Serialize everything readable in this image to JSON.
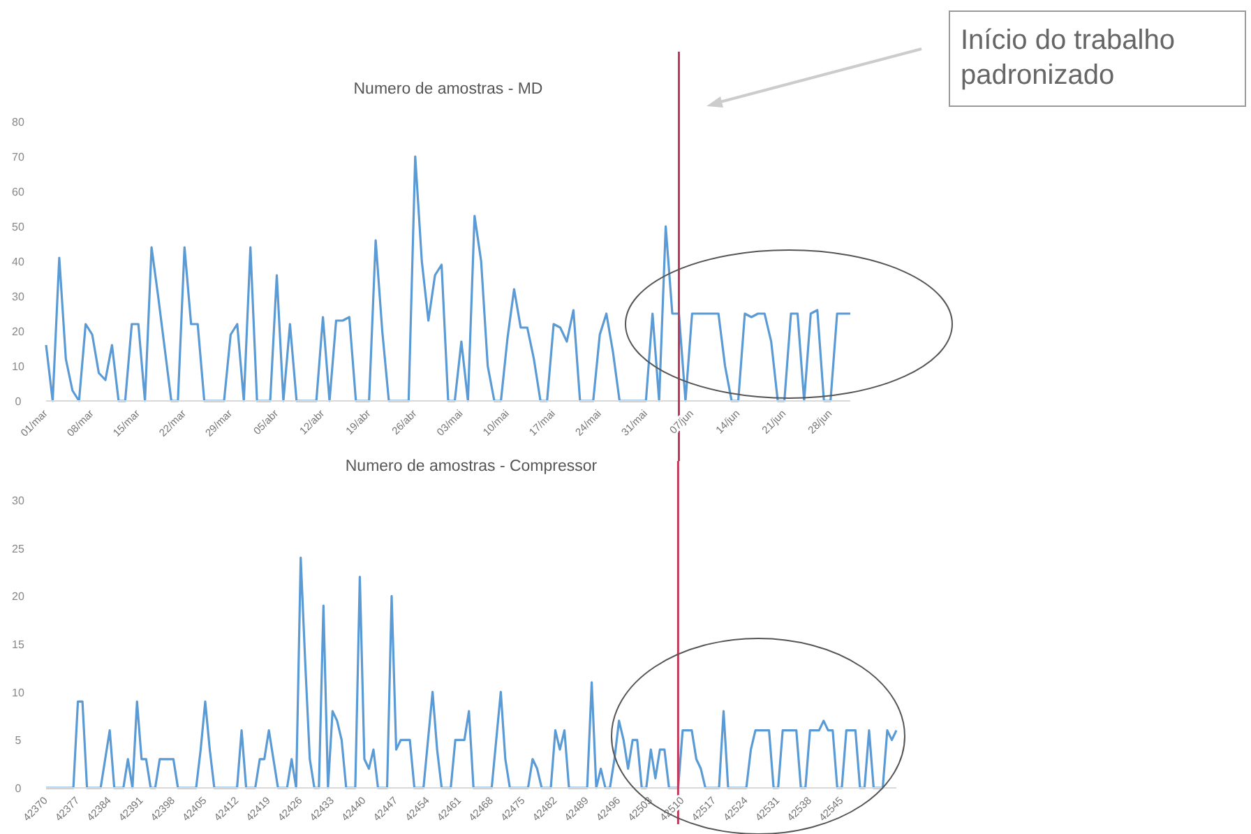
{
  "chart_data": [
    {
      "type": "line",
      "title": "Numero de amostras - MD",
      "x": [
        "--03-01",
        "--03-02",
        "--03-03",
        "--03-04",
        "--03-05",
        "--03-06",
        "--03-07",
        "--03-08",
        "--03-09",
        "--03-10",
        "--03-11",
        "--03-12",
        "--03-13",
        "--03-14",
        "--03-15",
        "--03-16",
        "--03-17",
        "--03-18",
        "--03-19",
        "--03-20",
        "--03-21",
        "--03-22",
        "--03-23",
        "--03-24",
        "--03-25",
        "--03-26",
        "--03-27",
        "--03-28",
        "--03-29",
        "--03-30",
        "--03-31",
        "--04-01",
        "--04-02",
        "--04-03",
        "--04-04",
        "--04-05",
        "--04-06",
        "--04-07",
        "--04-08",
        "--04-09",
        "--04-10",
        "--04-11",
        "--04-12",
        "--04-13",
        "--04-14",
        "--04-15",
        "--04-16",
        "--04-17",
        "--04-18",
        "--04-19",
        "--04-20",
        "--04-21",
        "--04-22",
        "--04-23",
        "--04-24",
        "--04-25",
        "--04-26",
        "--04-27",
        "--04-28",
        "--04-29",
        "--04-30",
        "--05-01",
        "--05-02",
        "--05-03",
        "--05-04",
        "--05-05",
        "--05-06",
        "--05-07",
        "--05-08",
        "--05-09",
        "--05-10",
        "--05-11",
        "--05-12",
        "--05-13",
        "--05-14",
        "--05-15",
        "--05-16",
        "--05-17",
        "--05-18",
        "--05-19",
        "--05-20",
        "--05-21",
        "--05-22",
        "--05-23",
        "--05-24",
        "--05-25",
        "--05-26",
        "--05-27",
        "--05-28",
        "--05-29",
        "--05-30",
        "--05-31",
        "--06-01",
        "--06-02",
        "--06-03",
        "--06-04",
        "--06-05",
        "--06-06",
        "--06-07",
        "--06-08",
        "--06-09",
        "--06-10",
        "--06-11",
        "--06-12",
        "--06-13",
        "--06-14",
        "--06-15",
        "--06-16",
        "--06-17",
        "--06-18",
        "--06-19",
        "--06-20",
        "--06-21",
        "--06-22",
        "--06-23",
        "--06-24",
        "--06-25",
        "--06-26",
        "--06-27",
        "--06-28",
        "--06-29",
        "--06-30",
        "--07-01"
      ],
      "series": [
        {
          "color": "#5b9bd5",
          "values": [
            16,
            0,
            41,
            12,
            3,
            0,
            22,
            19,
            8,
            6,
            16,
            0,
            0,
            22,
            22,
            0,
            44,
            30,
            15,
            0,
            0,
            44,
            22,
            22,
            0,
            0,
            0,
            0,
            19,
            22,
            0,
            44,
            0,
            0,
            0,
            36,
            0,
            22,
            0,
            0,
            0,
            0,
            24,
            0,
            23,
            23,
            24,
            0,
            0,
            0,
            46,
            20,
            0,
            0,
            0,
            0,
            70,
            40,
            23,
            36,
            39,
            0,
            0,
            17,
            0,
            53,
            40,
            10,
            0,
            0,
            18,
            32,
            21,
            21,
            12,
            0,
            0,
            22,
            21,
            17,
            26,
            0,
            0,
            0,
            19,
            25,
            14,
            0,
            0,
            0,
            0,
            0,
            25,
            0,
            50,
            25,
            25,
            0,
            25,
            25,
            25,
            25,
            25,
            10,
            0,
            0,
            25,
            24,
            25,
            25,
            17,
            0,
            0,
            25,
            25,
            0,
            25,
            26,
            0,
            0,
            25,
            25,
            25
          ]
        }
      ],
      "xlim": [
        "--03-01",
        "--07-01"
      ],
      "xticks": [
        {
          "value": "--03-01",
          "label": "01/mar"
        },
        {
          "value": "--03-08",
          "label": "08/mar"
        },
        {
          "value": "--03-15",
          "label": "15/mar"
        },
        {
          "value": "--03-22",
          "label": "22/mar"
        },
        {
          "value": "--03-29",
          "label": "29/mar"
        },
        {
          "value": "--04-05",
          "label": "05/abr"
        },
        {
          "value": "--04-12",
          "label": "12/abr"
        },
        {
          "value": "--04-19",
          "label": "19/abr"
        },
        {
          "value": "--04-26",
          "label": "26/abr"
        },
        {
          "value": "--05-03",
          "label": "03/mai"
        },
        {
          "value": "--05-10",
          "label": "10/mai"
        },
        {
          "value": "--05-17",
          "label": "17/mai"
        },
        {
          "value": "--05-24",
          "label": "24/mai"
        },
        {
          "value": "--05-31",
          "label": "31/mai"
        },
        {
          "value": "--06-07",
          "label": "07/jun"
        },
        {
          "value": "--06-14",
          "label": "14/jun"
        },
        {
          "value": "--06-21",
          "label": "21/jun"
        },
        {
          "value": "--06-28",
          "label": "28/jun"
        }
      ],
      "ylim": [
        0,
        80
      ],
      "yticks": [
        0,
        10,
        20,
        30,
        40,
        50,
        60,
        70,
        80
      ],
      "ref_lines": [
        {
          "axis": "x",
          "value": "--06-05",
          "color": "#c0395a"
        }
      ],
      "annotations": [
        "Início do trabalho padronizado"
      ]
    },
    {
      "type": "line",
      "title": "Numero de amostras - Compressor",
      "x": [
        42370,
        42371,
        42372,
        42373,
        42374,
        42375,
        42376,
        42377,
        42378,
        42379,
        42380,
        42381,
        42382,
        42383,
        42384,
        42385,
        42386,
        42387,
        42388,
        42389,
        42390,
        42391,
        42392,
        42393,
        42394,
        42395,
        42396,
        42397,
        42398,
        42399,
        42400,
        42401,
        42402,
        42403,
        42404,
        42405,
        42406,
        42407,
        42408,
        42409,
        42410,
        42411,
        42412,
        42413,
        42414,
        42415,
        42416,
        42417,
        42418,
        42419,
        42420,
        42421,
        42422,
        42423,
        42424,
        42425,
        42426,
        42427,
        42428,
        42429,
        42430,
        42431,
        42432,
        42433,
        42434,
        42435,
        42436,
        42437,
        42438,
        42439,
        42440,
        42441,
        42442,
        42443,
        42444,
        42445,
        42446,
        42447,
        42448,
        42449,
        42450,
        42451,
        42452,
        42453,
        42454,
        42455,
        42456,
        42457,
        42458,
        42459,
        42460,
        42461,
        42462,
        42463,
        42464,
        42465,
        42466,
        42467,
        42468,
        42469,
        42470,
        42471,
        42472,
        42473,
        42474,
        42475,
        42476,
        42477,
        42478,
        42479,
        42480,
        42481,
        42482,
        42483,
        42484,
        42485,
        42486,
        42487,
        42488,
        42489,
        42490,
        42491,
        42492,
        42493,
        42494,
        42495,
        42496,
        42497,
        42498,
        42499,
        42500,
        42501,
        42502,
        42503,
        42504,
        42505,
        42506,
        42507,
        42508,
        42509,
        42510,
        42511,
        42512,
        42513,
        42514,
        42515,
        42516,
        42517,
        42518,
        42519,
        42520,
        42521,
        42522,
        42523,
        42524,
        42525,
        42526,
        42527,
        42528,
        42529,
        42530,
        42531,
        42532,
        42533,
        42534,
        42535,
        42536,
        42537,
        42538,
        42539,
        42540,
        42541,
        42542,
        42543,
        42544,
        42545,
        42546,
        42547,
        42548,
        42549,
        42550,
        42551,
        42552,
        42553,
        42554,
        42555,
        42556,
        42557
      ],
      "series": [
        {
          "color": "#5b9bd5",
          "values": [
            0,
            0,
            0,
            0,
            0,
            0,
            0,
            9,
            9,
            0,
            0,
            0,
            0,
            3,
            6,
            0,
            0,
            0,
            3,
            0,
            9,
            3,
            3,
            0,
            0,
            3,
            3,
            3,
            3,
            0,
            0,
            0,
            0,
            0,
            4,
            9,
            4,
            0,
            0,
            0,
            0,
            0,
            0,
            6,
            0,
            0,
            0,
            3,
            3,
            6,
            3,
            0,
            0,
            0,
            3,
            0,
            24,
            13,
            3,
            0,
            0,
            19,
            0,
            8,
            7,
            5,
            0,
            0,
            0,
            22,
            3,
            2,
            4,
            0,
            0,
            0,
            20,
            4,
            5,
            5,
            5,
            0,
            0,
            0,
            5,
            10,
            4,
            0,
            0,
            0,
            5,
            5,
            5,
            8,
            0,
            0,
            0,
            0,
            0,
            5,
            10,
            3,
            0,
            0,
            0,
            0,
            0,
            3,
            2,
            0,
            0,
            0,
            6,
            4,
            6,
            0,
            0,
            0,
            0,
            0,
            11,
            0,
            2,
            0,
            0,
            3,
            7,
            5,
            2,
            5,
            5,
            0,
            0,
            4,
            1,
            4,
            4,
            0,
            0,
            0,
            6,
            6,
            6,
            3,
            2,
            0,
            0,
            0,
            0,
            8,
            0,
            0,
            0,
            0,
            0,
            4,
            6,
            6,
            6,
            6,
            0,
            0,
            6,
            6,
            6,
            6,
            0,
            0,
            6,
            6,
            6,
            7,
            6,
            6,
            0,
            0,
            6,
            6,
            6,
            0,
            0,
            6,
            0,
            0,
            0,
            6,
            5,
            6
          ]
        }
      ],
      "xlim": [
        42370,
        42557
      ],
      "xticks": [
        42370,
        42377,
        42384,
        42391,
        42398,
        42405,
        42412,
        42419,
        42426,
        42433,
        42440,
        42447,
        42454,
        42461,
        42468,
        42475,
        42482,
        42489,
        42496,
        42503,
        42510,
        42517,
        42524,
        42531,
        42538,
        42545
      ],
      "ylim": [
        0,
        30
      ],
      "yticks": [
        0,
        5,
        10,
        15,
        20,
        25,
        30
      ],
      "ref_lines": [
        {
          "axis": "x",
          "value": 42509,
          "color": "#c0395a"
        }
      ]
    }
  ]
}
